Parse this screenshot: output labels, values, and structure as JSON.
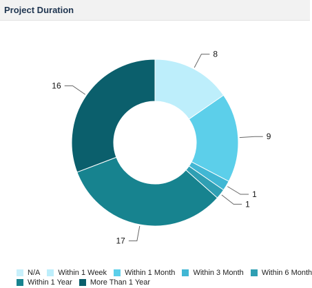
{
  "header": {
    "title": "Project Duration"
  },
  "chart_data": {
    "type": "pie",
    "variant": "donut",
    "categories": [
      "N/A",
      "Within 1 Week",
      "Within 1 Month",
      "Within 3 Month",
      "Within 6 Month",
      "Within 1 Year",
      "More Than 1 Year"
    ],
    "values": [
      0,
      8,
      9,
      1,
      1,
      17,
      16
    ],
    "data_labels": [
      "",
      "8",
      "9",
      "1",
      "1",
      "17",
      "16"
    ],
    "colors": [
      "#c8f0fb",
      "#bdeefb",
      "#5ccfea",
      "#41b7d4",
      "#2f9fb3",
      "#17838f",
      "#0b5f6c"
    ],
    "legend_position": "bottom"
  }
}
